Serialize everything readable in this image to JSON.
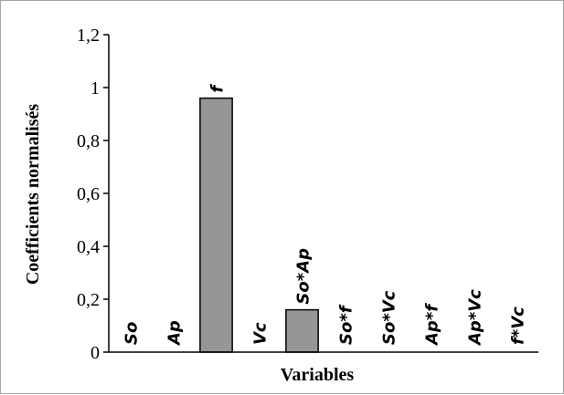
{
  "chart_data": {
    "type": "bar",
    "categories": [
      "So",
      "Ap",
      "f",
      "Vc",
      "So*Ap",
      "So*f",
      "So*Vc",
      "Ap*f",
      "Ap*Vc",
      "f*Vc"
    ],
    "values": [
      0,
      0,
      0.96,
      0,
      0.16,
      0,
      0,
      0,
      0,
      0
    ],
    "xlabel": "Variables",
    "ylabel": "Coefficients normalisés",
    "ylim": [
      0,
      1.2
    ],
    "yticks": [
      0,
      0.2,
      0.4,
      0.6,
      0.8,
      1,
      1.2
    ],
    "ytick_labels": [
      "0",
      "0,2",
      "0,4",
      "0,6",
      "0,8",
      "1",
      "1,2"
    ],
    "bar_color": "#969696",
    "bar_edge_color": "#000000",
    "grid": false,
    "legend": "none"
  }
}
